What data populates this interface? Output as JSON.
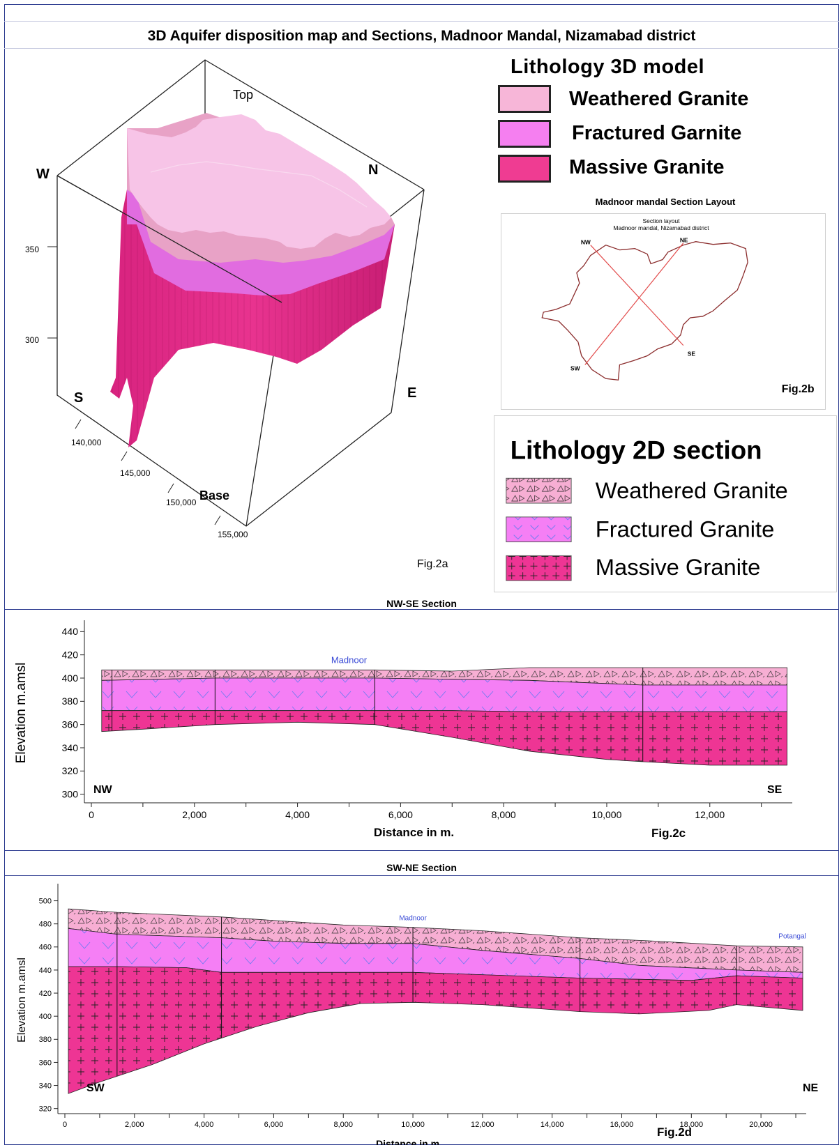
{
  "page_title": "3D Aquifer disposition map and Sections, Madnoor Mandal, Nizamabad district",
  "model3d": {
    "label": "Fig.2a",
    "directions": {
      "top": "Top",
      "base": "Base",
      "w": "W",
      "n": "N",
      "s": "S",
      "e": "E"
    },
    "z_ticks": [
      "350",
      "300"
    ],
    "y_ticks": [
      "140,000",
      "145,000",
      "150,000",
      "155,000"
    ]
  },
  "legend3d": {
    "title": "Lithology 3D model",
    "items": [
      {
        "label": "Weathered Granite",
        "color": "#f7b6d8"
      },
      {
        "label": "Fractured Garnite",
        "color": "#f57ff0"
      },
      {
        "label": "Massive Granite",
        "color": "#ef3c92"
      }
    ]
  },
  "layout_map": {
    "heading": "Madnoor mandal Section Layout",
    "inner_title_1": "Section layout",
    "inner_title_2": "Madnoor mandal, Nizamabad district",
    "points": {
      "nw": "NW",
      "ne": "NE",
      "sw": "SW",
      "se": "SE"
    },
    "label": "Fig.2b"
  },
  "legend2d": {
    "title": "Lithology 2D section",
    "items": [
      {
        "label": "Weathered Granite",
        "color": "#f7aed3"
      },
      {
        "label": "Fractured Granite",
        "color": "#f57ff5"
      },
      {
        "label": "Massive Granite",
        "color": "#ee3594"
      }
    ]
  },
  "chart_data": [
    {
      "type": "area",
      "title": "NW-SE Section",
      "xlabel": "Distance in m.",
      "ylabel": "Elevation m.amsl",
      "xlim": [
        0,
        13600
      ],
      "ylim": [
        295,
        445
      ],
      "x_ticks": [
        0,
        2000,
        4000,
        6000,
        8000,
        10000,
        12000
      ],
      "y_ticks": [
        300,
        320,
        340,
        360,
        380,
        400,
        420,
        440
      ],
      "left_label": "NW",
      "right_label": "SE",
      "place_label": "Madnoor",
      "place_x": 5000,
      "fig_label": "Fig.2c",
      "boreholes": [
        400,
        2400,
        5500,
        10700
      ],
      "series": [
        {
          "name": "Weathered Granite top",
          "x": [
            200,
            2400,
            5500,
            7000,
            8500,
            10700,
            13500
          ],
          "values": [
            407,
            407,
            407,
            406,
            409,
            409,
            409
          ]
        },
        {
          "name": "Fractured Granite top",
          "x": [
            200,
            2400,
            5500,
            7000,
            8500,
            10700,
            13500
          ],
          "values": [
            398,
            400,
            400,
            399,
            398,
            394,
            394
          ]
        },
        {
          "name": "Massive Granite top",
          "x": [
            200,
            2400,
            5500,
            7000,
            8500,
            10700,
            13500
          ],
          "values": [
            372,
            372,
            372,
            372,
            371,
            371,
            371
          ]
        },
        {
          "name": "Base",
          "x": [
            200,
            1000,
            2400,
            4000,
            5500,
            7000,
            8500,
            10000,
            10700,
            12000,
            13500
          ],
          "values": [
            354,
            356,
            360,
            362,
            360,
            349,
            337,
            330,
            328,
            325,
            325
          ]
        }
      ]
    },
    {
      "type": "area",
      "title": "SW-NE Section",
      "xlabel": "Distance in m",
      "ylabel": "Elevation m.amsl",
      "xlim": [
        0,
        21300
      ],
      "ylim": [
        318,
        510
      ],
      "x_ticks": [
        0,
        2000,
        4000,
        6000,
        8000,
        10000,
        12000,
        14000,
        16000,
        18000,
        20000
      ],
      "y_ticks": [
        320,
        340,
        360,
        380,
        400,
        420,
        440,
        460,
        480,
        500
      ],
      "left_label": "SW",
      "right_label": "NE",
      "place_label": "Madnoor",
      "place_x": 10000,
      "place2_label": "Potangal",
      "place2_x": 20900,
      "fig_label": "Fig.2d",
      "boreholes": [
        1500,
        4500,
        10000,
        14800,
        19300
      ],
      "series": [
        {
          "name": "Weathered Granite top",
          "x": [
            100,
            1500,
            4500,
            8000,
            10000,
            12000,
            14800,
            17000,
            19300,
            21200
          ],
          "values": [
            493,
            490,
            486,
            479,
            477,
            474,
            468,
            465,
            461,
            460
          ]
        },
        {
          "name": "Fractured Granite top",
          "x": [
            100,
            1500,
            4500,
            6000,
            8000,
            10000,
            12000,
            14800,
            16500,
            19300,
            21200
          ],
          "values": [
            476,
            471,
            468,
            465,
            463,
            463,
            457,
            450,
            444,
            440,
            438
          ]
        },
        {
          "name": "Massive Granite top",
          "x": [
            100,
            1500,
            3500,
            4500,
            10000,
            14800,
            18000,
            19300,
            21200
          ],
          "values": [
            443,
            443,
            442,
            438,
            438,
            433,
            431,
            435,
            433
          ]
        },
        {
          "name": "Base",
          "x": [
            100,
            1000,
            2500,
            4000,
            5500,
            7000,
            8500,
            10000,
            12000,
            14800,
            16500,
            18500,
            19300,
            21200
          ],
          "values": [
            333,
            343,
            358,
            376,
            391,
            403,
            411,
            412,
            410,
            404,
            402,
            405,
            410,
            405
          ]
        }
      ]
    }
  ]
}
